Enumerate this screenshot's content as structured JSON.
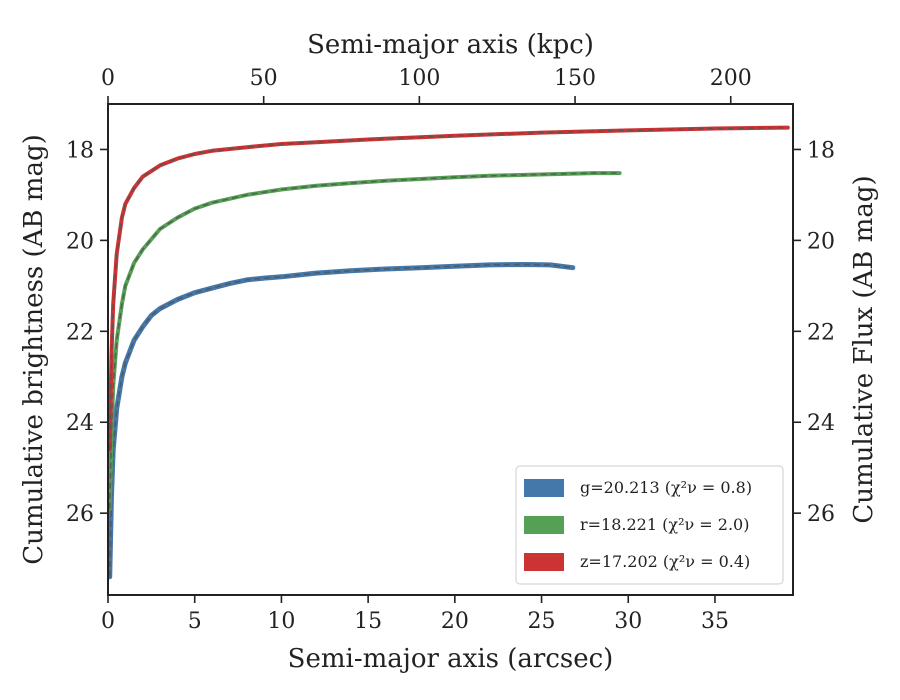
{
  "chart_data": {
    "type": "line",
    "xlabel": "Semi-major axis (arcsec)",
    "x2label": "Semi-major axis (kpc)",
    "ylabel": "Cumulative brightness (AB mag)",
    "y2label": "Cumulative Flux (AB mag)",
    "xlim": [
      0,
      39.5
    ],
    "x2lim": [
      0,
      220
    ],
    "ylim": [
      27.8,
      17.0
    ],
    "y_inverted": true,
    "x_ticks": [
      0,
      5,
      10,
      15,
      20,
      25,
      30,
      35
    ],
    "x2_ticks": [
      0,
      50,
      100,
      150,
      200
    ],
    "y_ticks": [
      18,
      20,
      22,
      24,
      26
    ],
    "legend_position": "lower-right",
    "grid": false,
    "series": [
      {
        "name": "g=20.213 (χ²ν = 0.8)",
        "color": "#4477aa",
        "x": [
          0.1,
          0.2,
          0.3,
          0.5,
          0.8,
          1.0,
          1.5,
          2.0,
          2.5,
          3.0,
          4.0,
          5.0,
          6.0,
          7.0,
          8.0,
          9.0,
          10.0,
          12.0,
          14.0,
          16.0,
          18.0,
          20.0,
          22.0,
          24.0,
          25.5,
          26.8
        ],
        "y": [
          27.4,
          25.6,
          24.6,
          23.7,
          23.0,
          22.7,
          22.2,
          21.9,
          21.65,
          21.5,
          21.3,
          21.15,
          21.05,
          20.95,
          20.87,
          20.83,
          20.8,
          20.72,
          20.67,
          20.63,
          20.6,
          20.57,
          20.54,
          20.53,
          20.54,
          20.6
        ]
      },
      {
        "name": "r=18.221 (χ²ν = 2.0)",
        "color": "#55a055",
        "x": [
          0.1,
          0.2,
          0.3,
          0.5,
          0.8,
          1.0,
          1.5,
          2.0,
          3.0,
          4.0,
          5.0,
          6.0,
          8.0,
          10.0,
          12.0,
          14.0,
          16.0,
          18.0,
          20.0,
          22.0,
          24.0,
          26.0,
          28.0,
          29.5
        ],
        "y": [
          25.9,
          24.2,
          23.2,
          22.2,
          21.4,
          21.0,
          20.5,
          20.2,
          19.75,
          19.5,
          19.3,
          19.17,
          19.0,
          18.88,
          18.8,
          18.74,
          18.69,
          18.65,
          18.61,
          18.58,
          18.56,
          18.54,
          18.52,
          18.52
        ]
      },
      {
        "name": "z=17.202 (χ²ν = 0.4)",
        "color": "#cc3333",
        "x": [
          0.1,
          0.2,
          0.3,
          0.5,
          0.8,
          1.0,
          1.5,
          2.0,
          3.0,
          4.0,
          5.0,
          6.0,
          8.0,
          10.0,
          12.0,
          15.0,
          18.0,
          20.0,
          25.0,
          30.0,
          35.0,
          39.2
        ],
        "y": [
          24.6,
          22.5,
          21.4,
          20.3,
          19.5,
          19.2,
          18.85,
          18.6,
          18.35,
          18.2,
          18.1,
          18.03,
          17.95,
          17.88,
          17.84,
          17.78,
          17.73,
          17.7,
          17.63,
          17.58,
          17.54,
          17.52
        ]
      }
    ]
  }
}
